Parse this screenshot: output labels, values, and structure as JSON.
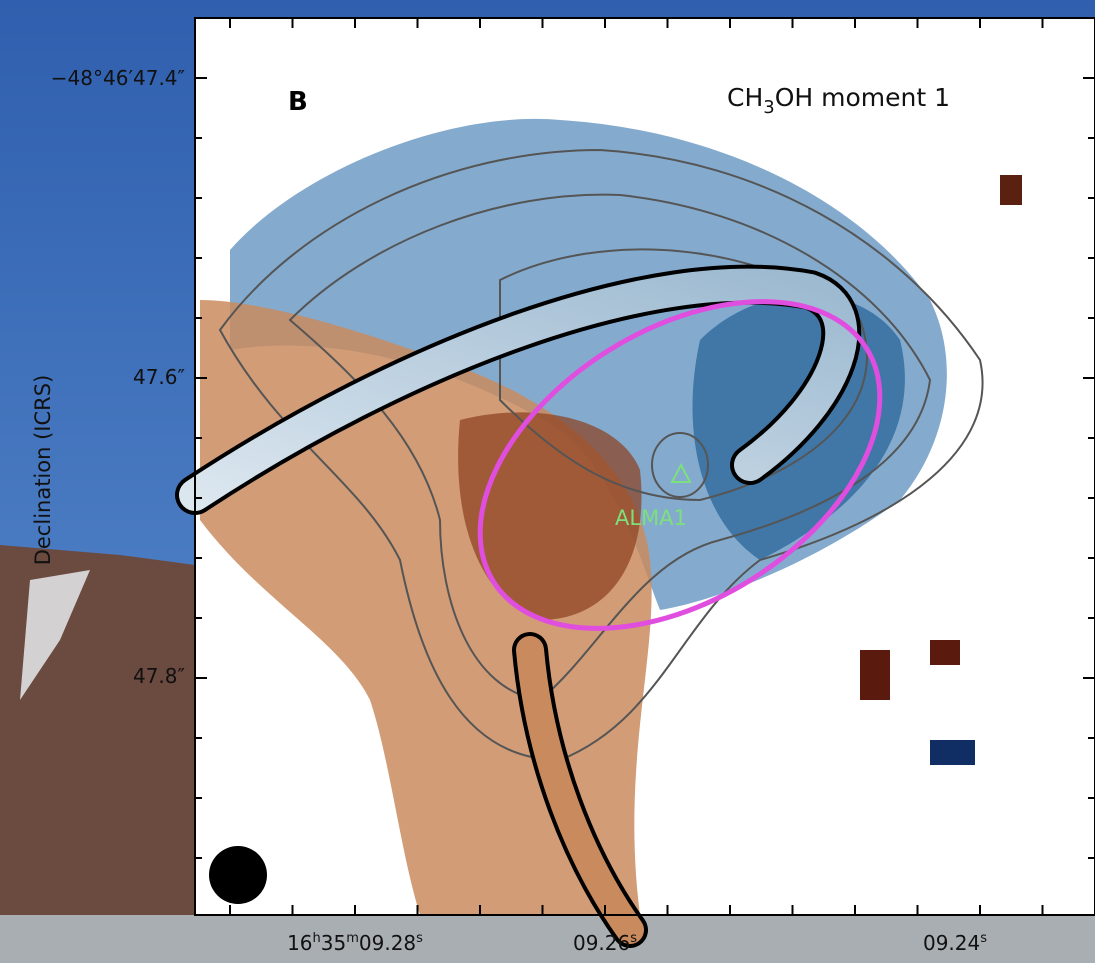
{
  "panel": {
    "label": "B",
    "title": {
      "prefix": "CH",
      "sub": "3",
      "suffix": "OH moment 1"
    },
    "source": "ALMA1"
  },
  "y_axis": {
    "label": "Declination (ICRS)",
    "ticks": [
      "−48°46′47.4″",
      "47.6″",
      "47.8″"
    ]
  },
  "x_axis": {
    "ticks": [
      [
        [
          "16",
          "h"
        ],
        [
          "35",
          "m"
        ],
        [
          "09.28",
          "s"
        ]
      ],
      [
        [
          "09.26",
          "s"
        ]
      ],
      [
        [
          "09.24",
          "s"
        ]
      ]
    ]
  }
}
